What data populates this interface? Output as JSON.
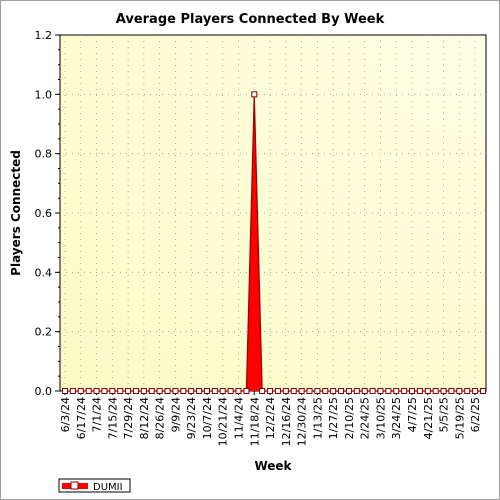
{
  "chart_data": {
    "type": "area",
    "title": "Average Players Connected By Week",
    "xlabel": "Week",
    "ylabel": "Players Connected",
    "ylim": [
      0,
      1.2
    ],
    "yticks": [
      "0.0",
      "0.2",
      "0.4",
      "0.6",
      "0.8",
      "1.0",
      "1.2"
    ],
    "grid": true,
    "legend_position": "bottom-left",
    "x": [
      "6/3/24",
      "6/10/24",
      "6/17/24",
      "6/24/24",
      "7/1/24",
      "7/8/24",
      "7/15/24",
      "7/22/24",
      "7/29/24",
      "8/5/24",
      "8/12/24",
      "8/19/24",
      "8/26/24",
      "9/2/24",
      "9/9/24",
      "9/16/24",
      "9/23/24",
      "9/30/24",
      "10/7/24",
      "10/14/24",
      "10/21/24",
      "10/28/24",
      "11/4/24",
      "11/11/24",
      "11/18/24",
      "11/25/24",
      "12/2/24",
      "12/9/24",
      "12/16/24",
      "12/23/24",
      "12/30/24",
      "1/6/25",
      "1/13/25",
      "1/20/25",
      "1/27/25",
      "2/3/25",
      "2/10/25",
      "2/17/25",
      "2/24/25",
      "3/3/25",
      "3/10/25",
      "3/17/25",
      "3/24/25",
      "3/31/25",
      "4/7/25",
      "4/14/25",
      "4/21/25",
      "4/28/25",
      "5/5/25",
      "5/12/25",
      "5/19/25",
      "5/26/25",
      "6/2/25",
      "6/9/25"
    ],
    "xtick_labels": [
      "6/3/24",
      "6/17/24",
      "7/1/24",
      "7/15/24",
      "7/29/24",
      "8/12/24",
      "8/26/24",
      "9/9/24",
      "9/23/24",
      "10/7/24",
      "10/21/24",
      "11/4/24",
      "11/18/24",
      "12/2/24",
      "12/16/24",
      "12/30/24",
      "1/13/25",
      "1/27/25",
      "2/10/25",
      "2/24/25",
      "3/10/25",
      "3/24/25",
      "4/7/25",
      "4/21/25",
      "5/5/25",
      "5/19/25",
      "6/2/25"
    ],
    "series": [
      {
        "name": "DUMII",
        "color": "#ff0000",
        "values": [
          0,
          0,
          0,
          0,
          0,
          0,
          0,
          0,
          0,
          0,
          0,
          0,
          0,
          0,
          0,
          0,
          0,
          0,
          0,
          0,
          0,
          0,
          0,
          0,
          1.0,
          0,
          0,
          0,
          0,
          0,
          0,
          0,
          0,
          0,
          0,
          0,
          0,
          0,
          0,
          0,
          0,
          0,
          0,
          0,
          0,
          0,
          0,
          0,
          0,
          0,
          0,
          0,
          0,
          0
        ]
      }
    ]
  }
}
